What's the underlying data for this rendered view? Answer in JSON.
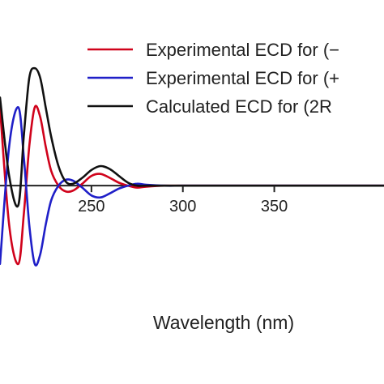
{
  "chart_data": {
    "type": "line",
    "xlabel": "Wavelength (nm)",
    "ylabel": "",
    "xlim": [
      200,
      410
    ],
    "ylim": [
      -10,
      14
    ],
    "x_ticks": [
      250,
      300,
      350
    ],
    "grid": false,
    "legend": "top-right",
    "series": [
      {
        "name": "Experimental ECD for (−",
        "color": "#d0021b",
        "x": [
          200,
          205,
          210,
          213,
          216,
          219,
          222,
          225,
          228,
          232,
          236,
          240,
          245,
          250,
          255,
          260,
          265,
          270,
          275,
          280,
          290,
          300,
          320,
          340,
          360,
          380,
          410
        ],
        "y": [
          8,
          -4,
          -8,
          -3,
          4,
          8,
          7,
          4,
          1.5,
          0,
          -0.6,
          -0.5,
          0.2,
          1.0,
          1.2,
          0.8,
          0.3,
          0,
          -0.2,
          -0.1,
          0,
          0,
          0,
          0,
          0,
          0,
          0
        ]
      },
      {
        "name": "Experimental ECD for (+",
        "color": "#1f1fc8",
        "x": [
          200,
          205,
          210,
          213,
          216,
          219,
          222,
          225,
          228,
          232,
          236,
          240,
          245,
          250,
          255,
          260,
          265,
          270,
          275,
          280,
          290,
          300,
          320,
          340,
          360,
          380,
          410
        ],
        "y": [
          -8,
          4,
          8,
          3,
          -4,
          -8,
          -7,
          -4,
          -1.5,
          0,
          0.6,
          0.5,
          -0.2,
          -1.0,
          -1.2,
          -0.8,
          -0.3,
          0,
          0.2,
          0.1,
          0,
          0,
          0,
          0,
          0,
          0,
          0
        ]
      },
      {
        "name": "Calculated ECD for (2R",
        "color": "#111111",
        "x": [
          200,
          205,
          210,
          213,
          216,
          219,
          222,
          225,
          228,
          232,
          236,
          240,
          245,
          250,
          255,
          260,
          265,
          270,
          275,
          280,
          290,
          300,
          320,
          340,
          360,
          380,
          410
        ],
        "y": [
          9,
          1,
          -2,
          5,
          11,
          12,
          11,
          8,
          5,
          2,
          0.4,
          0.2,
          0.8,
          1.6,
          2.0,
          1.7,
          1.0,
          0.3,
          0,
          0,
          0,
          0,
          0,
          0,
          0,
          0,
          0
        ]
      }
    ]
  }
}
